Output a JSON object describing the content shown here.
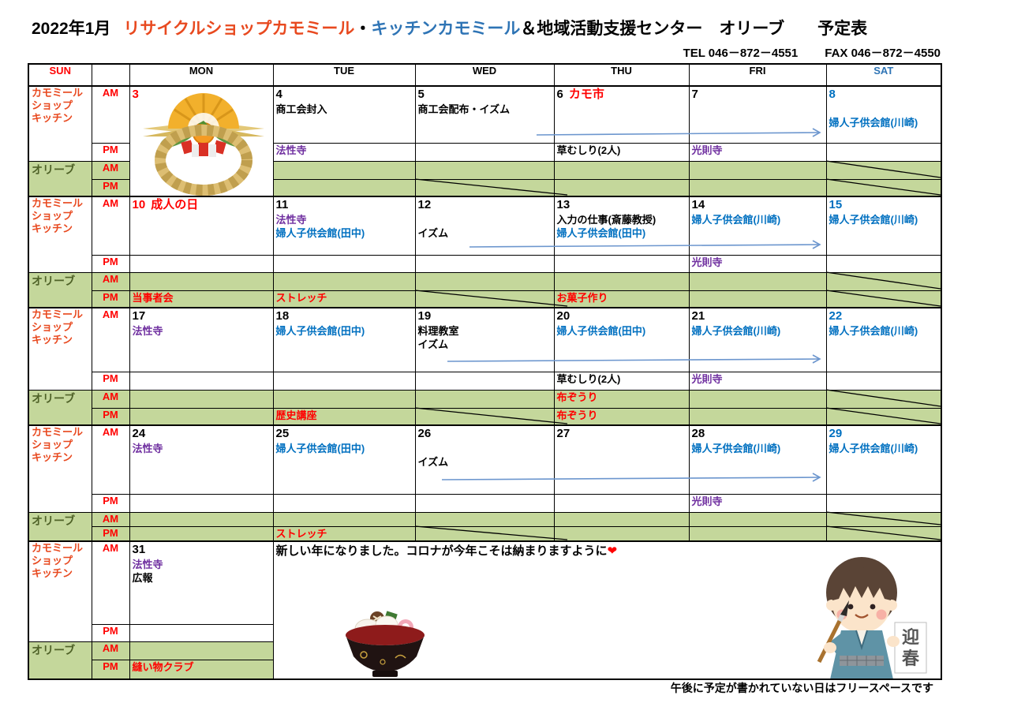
{
  "title": {
    "year_month": "2022年1月",
    "shop": "リサイクルショップカモミール",
    "dot": "・",
    "kitchen": "キッチンカモミール",
    "rest": "＆地域活動支援センター　オリーブ　　予定表"
  },
  "contact": {
    "tel": "TEL 046－872－4551",
    "fax": "FAX 046－872－4550"
  },
  "header_days": [
    "SUN",
    "MON",
    "TUE",
    "WED",
    "THU",
    "FRI",
    "SAT"
  ],
  "row_labels": {
    "shop": [
      "カモミール",
      "ショップ",
      "キッチン"
    ],
    "olive": "オリーブ",
    "am": "AM",
    "pm": "PM"
  },
  "colors": {
    "red": "#ff0000",
    "orange_red": "#e8491f",
    "blue": "#0070c0",
    "purple": "#7030a0",
    "title_blue": "#2e74b5",
    "green_bg": "#c4d79b",
    "olive_text": "#4f6228",
    "arrow": "#6c96ce",
    "black": "#000000"
  },
  "weeks": [
    {
      "days": [
        {
          "n": "3",
          "c": "red"
        },
        {
          "n": "4",
          "c": "black"
        },
        {
          "n": "5",
          "c": "black"
        },
        {
          "n": "6",
          "c": "black",
          "label": "カモ市",
          "label_c": "red"
        },
        {
          "n": "7",
          "c": "black"
        },
        {
          "n": "8",
          "c": "blue"
        }
      ],
      "am": [
        [],
        [
          {
            "t": "商工会封入",
            "c": "black"
          }
        ],
        [
          {
            "t": "商工会配布・イズム",
            "c": "black"
          }
        ],
        [],
        [],
        [
          {
            "t": "",
            "c": "black"
          },
          {
            "t": "婦人子供会館(川崎)",
            "c": "blue"
          }
        ]
      ],
      "pm": [
        [],
        [
          {
            "t": "法性寺",
            "c": "purple"
          }
        ],
        [],
        [
          {
            "t": "草むしり(2人)",
            "c": "black"
          }
        ],
        [
          {
            "t": "光則寺",
            "c": "purple"
          }
        ],
        []
      ],
      "olive_am": [
        [],
        [],
        [],
        [],
        [],
        []
      ],
      "olive_pm": [
        [],
        [],
        [],
        [],
        [],
        []
      ]
    },
    {
      "days": [
        {
          "n": "10",
          "c": "red",
          "label": "成人の日",
          "label_c": "red"
        },
        {
          "n": "11",
          "c": "black"
        },
        {
          "n": "12",
          "c": "black"
        },
        {
          "n": "13",
          "c": "black"
        },
        {
          "n": "14",
          "c": "black"
        },
        {
          "n": "15",
          "c": "blue"
        }
      ],
      "am": [
        [],
        [
          {
            "t": "法性寺",
            "c": "purple"
          },
          {
            "t": "婦人子供会館(田中)",
            "c": "blue"
          }
        ],
        [
          {
            "t": "",
            "c": "black"
          },
          {
            "t": "イズム",
            "c": "black"
          }
        ],
        [
          {
            "t": "入力の仕事(斎藤教授)",
            "c": "black"
          },
          {
            "t": "婦人子供会館(田中)",
            "c": "blue"
          }
        ],
        [
          {
            "t": "婦人子供会館(川崎)",
            "c": "blue"
          }
        ],
        [
          {
            "t": "婦人子供会館(川崎)",
            "c": "blue"
          }
        ]
      ],
      "pm": [
        [],
        [],
        [],
        [],
        [
          {
            "t": "光則寺",
            "c": "purple"
          }
        ],
        []
      ],
      "olive_am": [
        [],
        [],
        [],
        [],
        [],
        []
      ],
      "olive_pm": [
        [
          {
            "t": "当事者会",
            "c": "red"
          }
        ],
        [
          {
            "t": "ストレッチ",
            "c": "red"
          }
        ],
        [],
        [
          {
            "t": "お菓子作り",
            "c": "red"
          }
        ],
        [],
        []
      ]
    },
    {
      "days": [
        {
          "n": "17",
          "c": "black"
        },
        {
          "n": "18",
          "c": "black"
        },
        {
          "n": "19",
          "c": "black"
        },
        {
          "n": "20",
          "c": "black"
        },
        {
          "n": "21",
          "c": "black"
        },
        {
          "n": "22",
          "c": "blue"
        }
      ],
      "am": [
        [
          {
            "t": "法性寺",
            "c": "purple"
          }
        ],
        [
          {
            "t": "婦人子供会館(田中)",
            "c": "blue"
          }
        ],
        [
          {
            "t": "料理教室",
            "c": "black"
          },
          {
            "t": "イズム",
            "c": "black"
          }
        ],
        [
          {
            "t": "婦人子供会館(田中)",
            "c": "blue"
          }
        ],
        [
          {
            "t": "婦人子供会館(川崎)",
            "c": "blue"
          }
        ],
        [
          {
            "t": "婦人子供会館(川崎)",
            "c": "blue"
          }
        ]
      ],
      "pm": [
        [],
        [],
        [],
        [
          {
            "t": "草むしり(2人)",
            "c": "black"
          }
        ],
        [
          {
            "t": "光則寺",
            "c": "purple"
          }
        ],
        []
      ],
      "olive_am": [
        [],
        [],
        [],
        [
          {
            "t": "布ぞうり",
            "c": "red"
          }
        ],
        [],
        []
      ],
      "olive_pm": [
        [],
        [
          {
            "t": "歴史講座",
            "c": "red"
          }
        ],
        [],
        [
          {
            "t": "布ぞうり",
            "c": "red"
          }
        ],
        [],
        []
      ]
    },
    {
      "days": [
        {
          "n": "24",
          "c": "black"
        },
        {
          "n": "25",
          "c": "black"
        },
        {
          "n": "26",
          "c": "black"
        },
        {
          "n": "27",
          "c": "black"
        },
        {
          "n": "28",
          "c": "black"
        },
        {
          "n": "29",
          "c": "blue"
        }
      ],
      "am": [
        [
          {
            "t": "法性寺",
            "c": "purple"
          }
        ],
        [
          {
            "t": "婦人子供会館(田中)",
            "c": "blue"
          }
        ],
        [
          {
            "t": "",
            "c": "black"
          },
          {
            "t": "イズム",
            "c": "black"
          }
        ],
        [],
        [
          {
            "t": "婦人子供会館(川崎)",
            "c": "blue"
          }
        ],
        [
          {
            "t": "婦人子供会館(川崎)",
            "c": "blue"
          }
        ]
      ],
      "pm": [
        [],
        [],
        [],
        [],
        [
          {
            "t": "光則寺",
            "c": "purple"
          }
        ],
        []
      ],
      "olive_am": [
        [],
        [],
        [],
        [],
        [],
        []
      ],
      "olive_pm": [
        [],
        [
          {
            "t": "ストレッチ",
            "c": "red"
          }
        ],
        [],
        [],
        [],
        []
      ]
    },
    {
      "days": [
        {
          "n": "31",
          "c": "black"
        },
        null,
        null,
        null,
        null,
        null
      ],
      "am": [
        [
          {
            "t": "法性寺",
            "c": "purple"
          },
          {
            "t": "広報",
            "c": "black"
          }
        ],
        [],
        [],
        [],
        [],
        []
      ],
      "pm": [
        [],
        [],
        [],
        [],
        [],
        []
      ],
      "olive_am": [
        [],
        [],
        [],
        [],
        [],
        []
      ],
      "olive_pm": [
        [
          {
            "t": "縫い物クラブ",
            "c": "red"
          }
        ],
        [],
        [],
        [],
        [],
        []
      ]
    }
  ],
  "annotations": {
    "diagonals": [
      {
        "week": 0,
        "row": "olive_pm",
        "day": "WED"
      },
      {
        "week": 0,
        "row": "olive_am",
        "day": "SAT"
      },
      {
        "week": 0,
        "row": "olive_pm",
        "day": "SAT"
      },
      {
        "week": 1,
        "row": "olive_pm",
        "day": "WED"
      },
      {
        "week": 1,
        "row": "olive_am",
        "day": "SAT"
      },
      {
        "week": 1,
        "row": "olive_pm",
        "day": "SAT"
      },
      {
        "week": 2,
        "row": "olive_pm",
        "day": "WED"
      },
      {
        "week": 2,
        "row": "olive_am",
        "day": "SAT"
      },
      {
        "week": 2,
        "row": "olive_pm",
        "day": "SAT"
      },
      {
        "week": 3,
        "row": "olive_pm",
        "day": "WED"
      },
      {
        "week": 3,
        "row": "olive_am",
        "day": "SAT"
      },
      {
        "week": 3,
        "row": "olive_pm",
        "day": "SAT"
      }
    ],
    "arrows": [
      {
        "week": 0
      },
      {
        "week": 1
      },
      {
        "week": 2
      },
      {
        "week": 3
      }
    ]
  },
  "message": {
    "text": "新しい年になりました。コロナが今年こそは納まりますように",
    "heart": "❤"
  },
  "footnote": "午後に予定が書かれていない日はフリースペースです",
  "images": {
    "wreath": "new-year-shimekazari-wreath",
    "soup": "ozoni-rice-cake-soup-bowl",
    "boy": "new-year-calligraphy-boy",
    "boy_card": "迎春"
  }
}
